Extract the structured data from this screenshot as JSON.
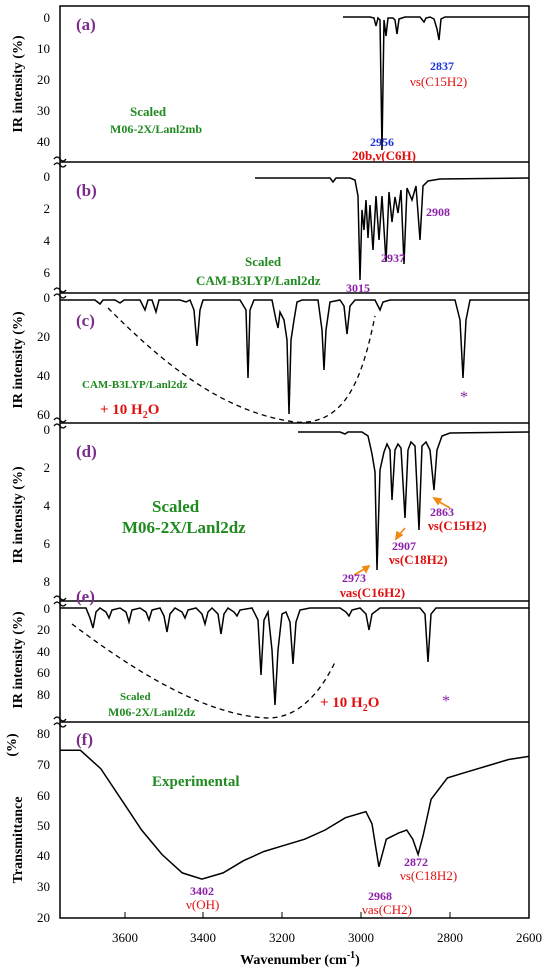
{
  "colors": {
    "panel_label": "#7B2D8B",
    "method": "#1F8A1F",
    "wavenumber_blue": "#1F35D6",
    "wavenumber_purple": "#8B1FA8",
    "assign_red": "#E01010",
    "arrow": "#F08A10",
    "water": "#E01010",
    "star": "#8B1FA8"
  },
  "axes": {
    "x_label": "Wavenumber (cm",
    "x_label_sup": "-1",
    "x_label_end": ")",
    "x_ticks": [
      "3600",
      "3400",
      "3200",
      "3000",
      "2800",
      "2600"
    ],
    "y_label_top": "IR intensity (%)",
    "y_label_mid": "IR intensity (%)",
    "y_label_d": "IR intensity (%)",
    "y_label_e": "IR intensity (%)",
    "y_label_f_pct": "(%)",
    "y_label_f": "Transmittance"
  },
  "chart_data": [
    {
      "type": "line",
      "panel": "(a)",
      "method_line1": "Scaled",
      "method_line2": "M06-2X/Lanl2mb",
      "yticks": [
        "0",
        "10",
        "20",
        "30",
        "40"
      ],
      "peaks": [
        {
          "x": 2956,
          "y": 42
        },
        {
          "x": 2837,
          "y": 10
        },
        {
          "x": 2900,
          "y": 8
        }
      ],
      "annotations": [
        {
          "wn": "2837",
          "assign": "νs(C15H2)"
        },
        {
          "wn": "2956",
          "assign": "20b,ν(C6H)"
        }
      ]
    },
    {
      "type": "line",
      "panel": "(b)",
      "method_line1": "Scaled",
      "method_line2": "CAM-B3LYP/Lanl2dz",
      "yticks": [
        "0",
        "2",
        "4",
        "6"
      ],
      "peaks": [
        {
          "x": 3015,
          "y": 7.8
        },
        {
          "x": 2937,
          "y": 6.2
        },
        {
          "x": 2908,
          "y": 5.4
        }
      ],
      "annotations": [
        {
          "wn": "2908"
        },
        {
          "wn": "2937"
        },
        {
          "wn": "3015"
        }
      ]
    },
    {
      "type": "line",
      "panel": "(c)",
      "method_line1": "CAM-B3LYP/Lanl2dz",
      "water": "+ 10 H",
      "yticks": [
        "0",
        "20",
        "40",
        "60"
      ],
      "peaks": [
        {
          "x": 3185,
          "y": 64
        },
        {
          "x": 3290,
          "y": 42
        },
        {
          "x": 3420,
          "y": 25
        },
        {
          "x": 2760,
          "y": 42
        }
      ],
      "star": "*"
    },
    {
      "type": "line",
      "panel": "(d)",
      "method_line1": "Scaled",
      "method_line2": "M06-2X/Lanl2dz",
      "yticks": [
        "0",
        "2",
        "4",
        "6",
        "8"
      ],
      "peaks": [
        {
          "x": 2973,
          "y": 7.6
        },
        {
          "x": 2907,
          "y": 5.2
        },
        {
          "x": 2863,
          "y": 3.6
        }
      ],
      "annotations": [
        {
          "wn": "2863",
          "assign": "νs(C15H2)"
        },
        {
          "wn": "2907",
          "assign": "νs(C18H2)"
        },
        {
          "wn": "2973",
          "assign": "νas(C16H2)"
        }
      ]
    },
    {
      "type": "line",
      "panel": "(e)",
      "method_line1": "Scaled",
      "method_line2": "M06-2X/Lanl2dz",
      "water": "+ 10 H",
      "yticks": [
        "0",
        "20",
        "40",
        "60",
        "80"
      ],
      "peaks": [
        {
          "x": 3265,
          "y": 88
        },
        {
          "x": 3230,
          "y": 78
        },
        {
          "x": 3450,
          "y": 55
        },
        {
          "x": 2800,
          "y": 58
        }
      ],
      "star": "*"
    },
    {
      "type": "line",
      "panel": "(f)",
      "method_line1": "Experimental",
      "yticks": [
        "20",
        "30",
        "40",
        "50",
        "60",
        "70",
        "80"
      ],
      "ylim": [
        20,
        85
      ],
      "x": [
        3750,
        3700,
        3650,
        3600,
        3550,
        3500,
        3450,
        3402,
        3350,
        3300,
        3250,
        3200,
        3150,
        3100,
        3050,
        3000,
        2985,
        2968,
        2950,
        2920,
        2900,
        2885,
        2872,
        2860,
        2840,
        2800,
        2750,
        2700,
        2650,
        2600
      ],
      "y": [
        76,
        76,
        70,
        60,
        50,
        42,
        36,
        34,
        36,
        40,
        43,
        45,
        47,
        50,
        54,
        56,
        52,
        38,
        47,
        49,
        50,
        47,
        42,
        48,
        60,
        67,
        69,
        71,
        73,
        74
      ],
      "annotations": [
        {
          "wn": "3402",
          "assign": "ν(OH)"
        },
        {
          "wn": "2968",
          "assign": "νas(CH2)"
        },
        {
          "wn": "2872",
          "assign": "νs(C18H2)"
        }
      ]
    }
  ]
}
